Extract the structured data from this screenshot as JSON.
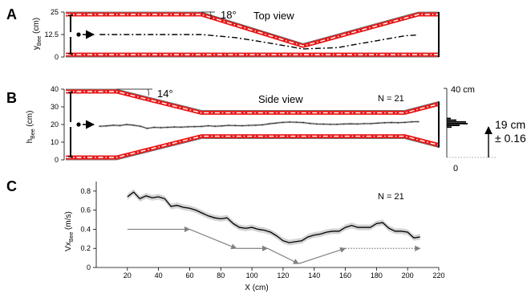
{
  "chart_data": [
    {
      "panel": "A",
      "type": "line",
      "title": "Top view",
      "ylabel_main": "y",
      "ylabel_sub": "Bee",
      "ylabel_unit": "(cm)",
      "yticks": [
        "25",
        "12.5",
        "0"
      ],
      "ylim": [
        0,
        25
      ],
      "xlim": [
        0,
        220
      ],
      "angle_label": "18°",
      "wall_top": {
        "x": [
          0,
          80,
          140,
          208,
          220
        ],
        "y": [
          25,
          25,
          7.5,
          25,
          25
        ]
      },
      "wall_bottom": {
        "x": [
          0,
          220
        ],
        "y": [
          0,
          0
        ]
      },
      "trajectory": {
        "x": [
          20,
          30,
          60,
          80,
          100,
          120,
          140,
          160,
          180,
          200,
          208
        ],
        "y": [
          12.5,
          12.5,
          12.5,
          12.5,
          10.8,
          7.8,
          4.5,
          5.2,
          8.5,
          11.8,
          12.3
        ]
      }
    },
    {
      "panel": "B",
      "type": "line",
      "title": "Side view",
      "annotation": "N = 21",
      "ylabel_main": "h",
      "ylabel_sub": "Bee",
      "ylabel_unit": "(cm)",
      "yticks": [
        "40",
        "30",
        "20",
        "10",
        "0"
      ],
      "ylim": [
        0,
        40
      ],
      "xlim": [
        0,
        220
      ],
      "angle_label": "14°",
      "wall_top": {
        "x": [
          0,
          30,
          80,
          200,
          220
        ],
        "y": [
          40,
          40,
          28,
          28,
          33
        ]
      },
      "wall_bottom": {
        "x": [
          0,
          30,
          80,
          200,
          220
        ],
        "y": [
          0,
          0,
          12,
          12,
          7
        ]
      },
      "mean_height": {
        "x": [
          20,
          24,
          28,
          32,
          36,
          40,
          44,
          48,
          52,
          56,
          60,
          64,
          68,
          72,
          76,
          80,
          84,
          88,
          92,
          96,
          100,
          104,
          108,
          112,
          116,
          120,
          124,
          128,
          132,
          136,
          140,
          144,
          148,
          152,
          156,
          160,
          164,
          168,
          172,
          176,
          180,
          184,
          188,
          192,
          196,
          200,
          204,
          208
        ],
        "y": [
          19,
          19.2,
          19.6,
          19.4,
          20,
          19.6,
          19,
          17.8,
          18.4,
          18.2,
          18.4,
          18.6,
          18.5,
          18.7,
          18.8,
          18.9,
          19.3,
          19,
          19.2,
          19.5,
          19.4,
          19.3,
          19.5,
          19.6,
          19.8,
          20.4,
          20.8,
          21.2,
          21.4,
          21.3,
          21.1,
          20.6,
          20.3,
          20.2,
          20.1,
          20.1,
          20.3,
          20.4,
          20.3,
          20.5,
          20.5,
          20.8,
          21,
          21.1,
          21,
          21.2,
          21.5,
          21.6
        ]
      },
      "histogram_scale_top": "40 cm",
      "histogram_scale_bottom": "0",
      "histogram_mean": "19 cm",
      "histogram_sem": "± 0.16"
    },
    {
      "panel": "C",
      "type": "line",
      "annotation": "N = 21",
      "xlabel": "X (cm)",
      "ylabel_main": "Vx",
      "ylabel_sub": "Bee",
      "ylabel_unit": "(m/s)",
      "xticks": [
        20,
        40,
        60,
        80,
        100,
        120,
        140,
        160,
        180,
        200,
        220
      ],
      "yticks": [
        0,
        0.2,
        0.4,
        0.6,
        0.8
      ],
      "xlim": [
        0,
        220
      ],
      "ylim": [
        0,
        0.9
      ],
      "speed": {
        "x": [
          20,
          24,
          28,
          32,
          36,
          40,
          44,
          48,
          52,
          56,
          60,
          64,
          68,
          72,
          76,
          80,
          84,
          88,
          92,
          96,
          100,
          104,
          108,
          112,
          116,
          120,
          124,
          128,
          132,
          136,
          140,
          144,
          148,
          152,
          156,
          160,
          164,
          168,
          172,
          176,
          180,
          184,
          188,
          192,
          196,
          200,
          204,
          208
        ],
        "y": [
          0.74,
          0.79,
          0.72,
          0.75,
          0.73,
          0.74,
          0.72,
          0.64,
          0.65,
          0.63,
          0.62,
          0.6,
          0.57,
          0.54,
          0.52,
          0.51,
          0.52,
          0.46,
          0.42,
          0.41,
          0.42,
          0.4,
          0.39,
          0.37,
          0.33,
          0.28,
          0.26,
          0.27,
          0.28,
          0.32,
          0.34,
          0.35,
          0.37,
          0.38,
          0.38,
          0.42,
          0.44,
          0.42,
          0.42,
          0.42,
          0.46,
          0.47,
          0.41,
          0.38,
          0.38,
          0.37,
          0.31,
          0.32
        ]
      },
      "model_arrows": [
        {
          "x1": 20,
          "y1": 0.4,
          "x2": 60,
          "y2": 0.4,
          "style": "solid"
        },
        {
          "x1": 60,
          "y1": 0.4,
          "x2": 90,
          "y2": 0.2,
          "style": "solid"
        },
        {
          "x1": 90,
          "y1": 0.2,
          "x2": 110,
          "y2": 0.2,
          "style": "solid"
        },
        {
          "x1": 110,
          "y1": 0.2,
          "x2": 130,
          "y2": 0.04,
          "style": "solid"
        },
        {
          "x1": 130,
          "y1": 0.04,
          "x2": 160,
          "y2": 0.2,
          "style": "solid"
        },
        {
          "x1": 160,
          "y1": 0.2,
          "x2": 208,
          "y2": 0.2,
          "style": "dotted"
        }
      ]
    }
  ]
}
